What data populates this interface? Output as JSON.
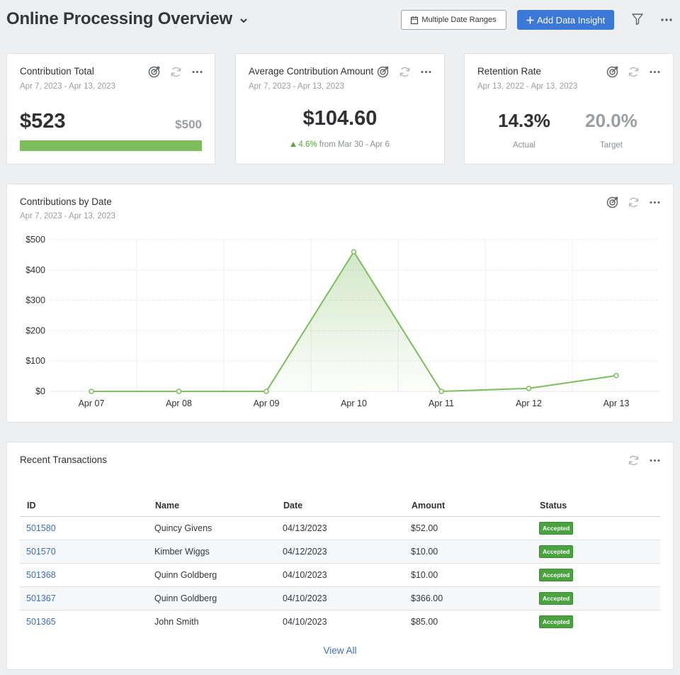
{
  "header": {
    "title": "Online Processing Overview",
    "date_ranges_label": "Multiple Date Ranges",
    "add_insight_label": "Add Data Insight"
  },
  "cards": {
    "contribution_total": {
      "title": "Contribution Total",
      "date_range": "Apr 7, 2023 - Apr 13, 2023",
      "value": "$523",
      "target": "$500",
      "progress_fraction": 1.0
    },
    "average_contribution": {
      "title": "Average Contribution Amount",
      "date_range": "Apr 7, 2023 - Apr 13, 2023",
      "value": "$104.60",
      "change_pct": "4.6%",
      "change_text": "from Mar 30 - Apr 6"
    },
    "retention_rate": {
      "title": "Retention Rate",
      "date_range": "Apr 13, 2022 - Apr 13, 2023",
      "actual_value": "14.3%",
      "actual_label": "Actual",
      "target_value": "20.0%",
      "target_label": "Target"
    }
  },
  "contributions_chart": {
    "title": "Contributions by Date",
    "date_range": "Apr 7, 2023 - Apr 13, 2023"
  },
  "chart_data": {
    "type": "area",
    "categories": [
      "Apr 07",
      "Apr 08",
      "Apr 09",
      "Apr 10",
      "Apr 11",
      "Apr 12",
      "Apr 13"
    ],
    "series": [
      {
        "values": [
          0,
          0,
          0,
          460,
          0,
          10,
          52
        ]
      }
    ],
    "y_ticks": [
      "$0",
      "$100",
      "$200",
      "$300",
      "$400",
      "$500"
    ],
    "ylim": [
      0,
      500
    ],
    "grid": true,
    "colors": {
      "line": "#7dbd5e",
      "fill": "#7dbd5e"
    }
  },
  "transactions": {
    "title": "Recent Transactions",
    "columns": [
      "ID",
      "Name",
      "Date",
      "Amount",
      "Status"
    ],
    "rows": [
      {
        "id": "501580",
        "name": "Quincy Givens",
        "date": "04/13/2023",
        "amount": "$52.00",
        "status": "Accepted"
      },
      {
        "id": "501570",
        "name": "Kimber Wiggs",
        "date": "04/12/2023",
        "amount": "$10.00",
        "status": "Accepted"
      },
      {
        "id": "501368",
        "name": "Quinn Goldberg",
        "date": "04/10/2023",
        "amount": "$10.00",
        "status": "Accepted"
      },
      {
        "id": "501367",
        "name": "Quinn Goldberg",
        "date": "04/10/2023",
        "amount": "$366.00",
        "status": "Accepted"
      },
      {
        "id": "501365",
        "name": "John Smith",
        "date": "04/10/2023",
        "amount": "$85.00",
        "status": "Accepted"
      }
    ],
    "view_all_label": "View All"
  },
  "icons": [
    "chevron-down-icon",
    "calendar-icon",
    "plus-icon",
    "filter-icon",
    "more-icon",
    "target-icon",
    "refresh-icon"
  ],
  "colors": {
    "accent": "#3b78d8",
    "link": "#3d6fc2",
    "success": "#4aa33f",
    "chart_green": "#7dbd5e"
  }
}
